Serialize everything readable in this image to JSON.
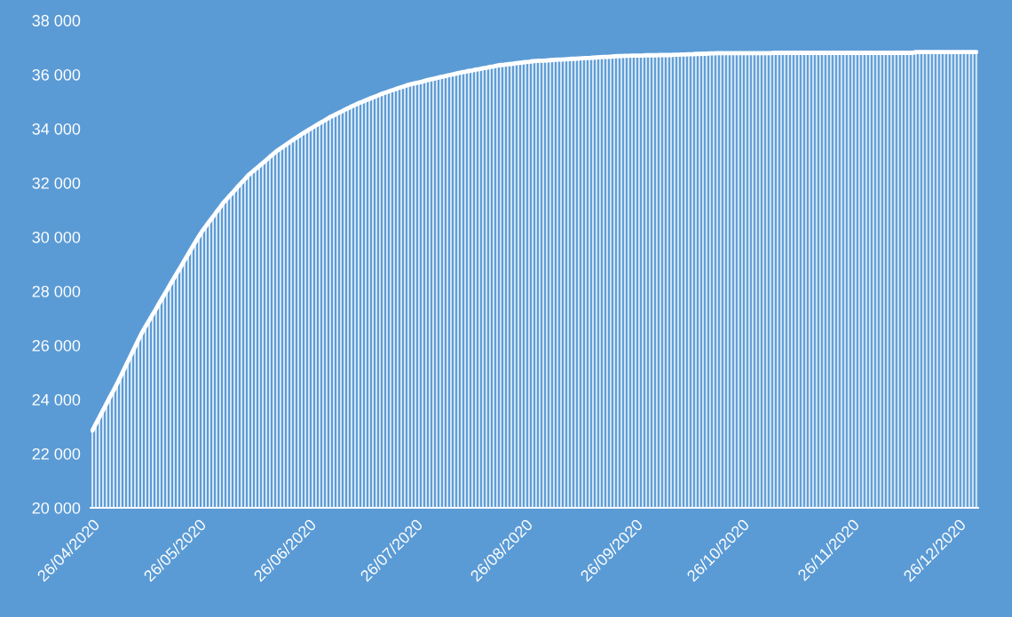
{
  "chart_data": {
    "type": "bar",
    "x": [
      "2020-04-26",
      "2020-04-27",
      "2020-04-28",
      "2020-04-29",
      "2020-04-30",
      "2020-05-01",
      "2020-05-02",
      "2020-05-03",
      "2020-05-04",
      "2020-05-05",
      "2020-05-06",
      "2020-05-07",
      "2020-05-08",
      "2020-05-09",
      "2020-05-10",
      "2020-05-11",
      "2020-05-12",
      "2020-05-13",
      "2020-05-14",
      "2020-05-15",
      "2020-05-16",
      "2020-05-17",
      "2020-05-18",
      "2020-05-19",
      "2020-05-20",
      "2020-05-21",
      "2020-05-22",
      "2020-05-23",
      "2020-05-24",
      "2020-05-25",
      "2020-05-26",
      "2020-05-27",
      "2020-05-28",
      "2020-05-29",
      "2020-05-30",
      "2020-05-31",
      "2020-06-01",
      "2020-06-02",
      "2020-06-03",
      "2020-06-04",
      "2020-06-05",
      "2020-06-06",
      "2020-06-07",
      "2020-06-08",
      "2020-06-09",
      "2020-06-10",
      "2020-06-11",
      "2020-06-12",
      "2020-06-13",
      "2020-06-14",
      "2020-06-15",
      "2020-06-16",
      "2020-06-17",
      "2020-06-18",
      "2020-06-19",
      "2020-06-20",
      "2020-06-21",
      "2020-06-22",
      "2020-06-23",
      "2020-06-24",
      "2020-06-25",
      "2020-06-26",
      "2020-06-27",
      "2020-06-28",
      "2020-06-29",
      "2020-06-30",
      "2020-07-01",
      "2020-07-02",
      "2020-07-03",
      "2020-07-04",
      "2020-07-05",
      "2020-07-06",
      "2020-07-07",
      "2020-07-08",
      "2020-07-09",
      "2020-07-10",
      "2020-07-11",
      "2020-07-12",
      "2020-07-13",
      "2020-07-14",
      "2020-07-15",
      "2020-07-16",
      "2020-07-17",
      "2020-07-18",
      "2020-07-19",
      "2020-07-20",
      "2020-07-21",
      "2020-07-22",
      "2020-07-23",
      "2020-07-24",
      "2020-07-25",
      "2020-07-26",
      "2020-07-27",
      "2020-07-28",
      "2020-07-29",
      "2020-07-30",
      "2020-07-31",
      "2020-08-01",
      "2020-08-02",
      "2020-08-03",
      "2020-08-04",
      "2020-08-05",
      "2020-08-06",
      "2020-08-07",
      "2020-08-08",
      "2020-08-09",
      "2020-08-10",
      "2020-08-11",
      "2020-08-12",
      "2020-08-13",
      "2020-08-14",
      "2020-08-15",
      "2020-08-16",
      "2020-08-17",
      "2020-08-18",
      "2020-08-19",
      "2020-08-20",
      "2020-08-21",
      "2020-08-22",
      "2020-08-23",
      "2020-08-24",
      "2020-08-25",
      "2020-08-26",
      "2020-08-27",
      "2020-08-28",
      "2020-08-29",
      "2020-08-30",
      "2020-08-31",
      "2020-09-01",
      "2020-09-02",
      "2020-09-03",
      "2020-09-04",
      "2020-09-05",
      "2020-09-06",
      "2020-09-07",
      "2020-09-08",
      "2020-09-09",
      "2020-09-10",
      "2020-09-11",
      "2020-09-12",
      "2020-09-13",
      "2020-09-14",
      "2020-09-15",
      "2020-09-16",
      "2020-09-17",
      "2020-09-18",
      "2020-09-19",
      "2020-09-20",
      "2020-09-21",
      "2020-09-22",
      "2020-09-23",
      "2020-09-24",
      "2020-09-25",
      "2020-09-26",
      "2020-09-27",
      "2020-09-28",
      "2020-09-29",
      "2020-09-30",
      "2020-10-01",
      "2020-10-02",
      "2020-10-03",
      "2020-10-04",
      "2020-10-05",
      "2020-10-06",
      "2020-10-07",
      "2020-10-08",
      "2020-10-09",
      "2020-10-10",
      "2020-10-11",
      "2020-10-12",
      "2020-10-13",
      "2020-10-14",
      "2020-10-15",
      "2020-10-16",
      "2020-10-17",
      "2020-10-18",
      "2020-10-19",
      "2020-10-20",
      "2020-10-21",
      "2020-10-22",
      "2020-10-23",
      "2020-10-24",
      "2020-10-25",
      "2020-10-26",
      "2020-10-27",
      "2020-10-28",
      "2020-10-29",
      "2020-10-30",
      "2020-10-31",
      "2020-11-01",
      "2020-11-02",
      "2020-11-03",
      "2020-11-04",
      "2020-11-05",
      "2020-11-06",
      "2020-11-07",
      "2020-11-08",
      "2020-11-09",
      "2020-11-10",
      "2020-11-11",
      "2020-11-12",
      "2020-11-13",
      "2020-11-14",
      "2020-11-15",
      "2020-11-16",
      "2020-11-17",
      "2020-11-18",
      "2020-11-19",
      "2020-11-20",
      "2020-11-21",
      "2020-11-22",
      "2020-11-23",
      "2020-11-24",
      "2020-11-25",
      "2020-11-26",
      "2020-11-27",
      "2020-11-28",
      "2020-11-29",
      "2020-11-30",
      "2020-12-01",
      "2020-12-02",
      "2020-12-03",
      "2020-12-04",
      "2020-12-05",
      "2020-12-06",
      "2020-12-07",
      "2020-12-08",
      "2020-12-09",
      "2020-12-10",
      "2020-12-11",
      "2020-12-12",
      "2020-12-13",
      "2020-12-14",
      "2020-12-15",
      "2020-12-16",
      "2020-12-17",
      "2020-12-18",
      "2020-12-19",
      "2020-12-20",
      "2020-12-21",
      "2020-12-22",
      "2020-12-23",
      "2020-12-24",
      "2020-12-25",
      "2020-12-26",
      "2020-12-27",
      "2020-12-28",
      "2020-12-29",
      "2020-12-30",
      "2020-12-31"
    ],
    "series": [
      {
        "color": "#ffffff",
        "values": [
          22850,
          23100,
          23350,
          23600,
          23850,
          24100,
          24340,
          24590,
          24860,
          25130,
          25400,
          25670,
          25940,
          26210,
          26470,
          26700,
          26920,
          27140,
          27360,
          27590,
          27810,
          28030,
          28260,
          28480,
          28700,
          28920,
          29150,
          29370,
          29590,
          29810,
          30020,
          30230,
          30400,
          30580,
          30750,
          30930,
          31100,
          31280,
          31420,
          31570,
          31710,
          31860,
          32000,
          32140,
          32290,
          32400,
          32510,
          32620,
          32730,
          32840,
          32960,
          33070,
          33180,
          33270,
          33360,
          33450,
          33540,
          33630,
          33710,
          33800,
          33880,
          33960,
          34040,
          34120,
          34200,
          34270,
          34350,
          34430,
          34490,
          34560,
          34620,
          34690,
          34750,
          34820,
          34880,
          34940,
          34990,
          35050,
          35100,
          35150,
          35200,
          35260,
          35310,
          35350,
          35400,
          35440,
          35490,
          35530,
          35570,
          35620,
          35650,
          35680,
          35710,
          35740,
          35780,
          35810,
          35840,
          35870,
          35900,
          35930,
          35960,
          35990,
          36020,
          36050,
          36080,
          36100,
          36130,
          36150,
          36180,
          36200,
          36230,
          36250,
          36280,
          36300,
          36330,
          36350,
          36360,
          36380,
          36390,
          36410,
          36430,
          36440,
          36460,
          36470,
          36490,
          36500,
          36510,
          36510,
          36520,
          36530,
          36540,
          36550,
          36550,
          36560,
          36570,
          36580,
          36580,
          36590,
          36600,
          36610,
          36610,
          36620,
          36630,
          36640,
          36650,
          36650,
          36660,
          36670,
          36680,
          36680,
          36690,
          36690,
          36700,
          36700,
          36700,
          36700,
          36710,
          36710,
          36710,
          36710,
          36720,
          36720,
          36720,
          36720,
          36730,
          36730,
          36740,
          36740,
          36750,
          36750,
          36760,
          36760,
          36770,
          36770,
          36780,
          36780,
          36790,
          36790,
          36790,
          36790,
          36790,
          36790,
          36790,
          36790,
          36790,
          36790,
          36790,
          36790,
          36790,
          36790,
          36790,
          36790,
          36800,
          36800,
          36800,
          36800,
          36800,
          36800,
          36800,
          36800,
          36800,
          36800,
          36800,
          36800,
          36800,
          36800,
          36800,
          36800,
          36800,
          36800,
          36800,
          36800,
          36800,
          36800,
          36800,
          36800,
          36800,
          36800,
          36800,
          36800,
          36800,
          36800,
          36800,
          36800,
          36800,
          36800,
          36800,
          36800,
          36800,
          36800,
          36800,
          36800,
          36830,
          36830,
          36830,
          36830,
          36830,
          36830,
          36830,
          36830,
          36830,
          36830,
          36830,
          36830,
          36830,
          36830,
          36830,
          36830,
          36830,
          36830
        ]
      },
      {
        "type": "line",
        "color": "#ffffff",
        "values": [
          22850,
          23100,
          23350,
          23600,
          23850,
          24100,
          24340,
          24590,
          24860,
          25130,
          25400,
          25670,
          25940,
          26210,
          26470,
          26700,
          26920,
          27140,
          27360,
          27590,
          27810,
          28030,
          28260,
          28480,
          28700,
          28920,
          29150,
          29370,
          29590,
          29810,
          30020,
          30230,
          30400,
          30580,
          30750,
          30930,
          31100,
          31280,
          31420,
          31570,
          31710,
          31860,
          32000,
          32140,
          32290,
          32400,
          32510,
          32620,
          32730,
          32840,
          32960,
          33070,
          33180,
          33270,
          33360,
          33450,
          33540,
          33630,
          33710,
          33800,
          33880,
          33960,
          34040,
          34120,
          34200,
          34270,
          34350,
          34430,
          34490,
          34560,
          34620,
          34690,
          34750,
          34820,
          34880,
          34940,
          34990,
          35050,
          35100,
          35150,
          35200,
          35260,
          35310,
          35350,
          35400,
          35440,
          35490,
          35530,
          35570,
          35620,
          35650,
          35680,
          35710,
          35740,
          35780,
          35810,
          35840,
          35870,
          35900,
          35930,
          35960,
          35990,
          36020,
          36050,
          36080,
          36100,
          36130,
          36150,
          36180,
          36200,
          36230,
          36250,
          36280,
          36300,
          36330,
          36350,
          36360,
          36380,
          36390,
          36410,
          36430,
          36440,
          36460,
          36470,
          36490,
          36500,
          36510,
          36510,
          36520,
          36530,
          36540,
          36550,
          36550,
          36560,
          36570,
          36580,
          36580,
          36590,
          36600,
          36610,
          36610,
          36620,
          36630,
          36640,
          36650,
          36650,
          36660,
          36670,
          36680,
          36680,
          36690,
          36690,
          36700,
          36700,
          36700,
          36700,
          36710,
          36710,
          36710,
          36710,
          36720,
          36720,
          36720,
          36720,
          36730,
          36730,
          36740,
          36740,
          36750,
          36750,
          36760,
          36760,
          36770,
          36770,
          36780,
          36780,
          36790,
          36790,
          36790,
          36790,
          36790,
          36790,
          36790,
          36790,
          36790,
          36790,
          36790,
          36790,
          36790,
          36790,
          36790,
          36790,
          36800,
          36800,
          36800,
          36800,
          36800,
          36800,
          36800,
          36800,
          36800,
          36800,
          36800,
          36800,
          36800,
          36800,
          36800,
          36800,
          36800,
          36800,
          36800,
          36800,
          36800,
          36800,
          36800,
          36800,
          36800,
          36800,
          36800,
          36800,
          36800,
          36800,
          36800,
          36800,
          36800,
          36800,
          36800,
          36800,
          36800,
          36800,
          36800,
          36800,
          36830,
          36830,
          36830,
          36830,
          36830,
          36830,
          36830,
          36830,
          36830,
          36830,
          36830,
          36830,
          36830,
          36830,
          36830,
          36830,
          36830,
          36830
        ]
      }
    ],
    "xlim": [
      "2020-04-25T12:00",
      "2020-12-31T12:00"
    ],
    "xticks": [
      {
        "value": "2020-04-26",
        "label": "26/04/2020"
      },
      {
        "value": "2020-05-26",
        "label": "26/05/2020"
      },
      {
        "value": "2020-06-26",
        "label": "26/06/2020"
      },
      {
        "value": "2020-07-26",
        "label": "26/07/2020"
      },
      {
        "value": "2020-08-26",
        "label": "26/08/2020"
      },
      {
        "value": "2020-09-26",
        "label": "26/09/2020"
      },
      {
        "value": "2020-10-26",
        "label": "26/10/2020"
      },
      {
        "value": "2020-11-26",
        "label": "26/11/2020"
      },
      {
        "value": "2020-12-26",
        "label": "26/12/2020"
      }
    ],
    "ylim": [
      20000,
      38000
    ],
    "yticks": [
      {
        "value": 20000,
        "label": "20 000"
      },
      {
        "value": 22000,
        "label": "22 000"
      },
      {
        "value": 24000,
        "label": "24 000"
      },
      {
        "value": 26000,
        "label": "26 000"
      },
      {
        "value": 28000,
        "label": "28 000"
      },
      {
        "value": 30000,
        "label": "30 000"
      },
      {
        "value": 32000,
        "label": "32 000"
      },
      {
        "value": 34000,
        "label": "34 000"
      },
      {
        "value": 36000,
        "label": "36 000"
      },
      {
        "value": 38000,
        "label": "38 000"
      }
    ],
    "grid": false,
    "legend": false
  }
}
